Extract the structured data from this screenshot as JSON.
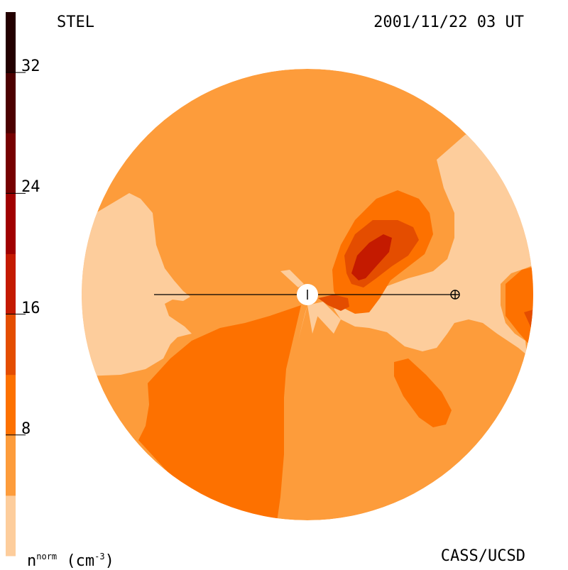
{
  "header": {
    "left_label": "STEL",
    "timestamp": "2001/11/22 03 UT"
  },
  "footer": {
    "credit": "CASS/UCSD",
    "unit_base": "n",
    "unit_sup": "norm",
    "unit_open": "(cm",
    "unit_exp": "-3",
    "unit_close": ")"
  },
  "chart_data": {
    "type": "heatmap",
    "title": "",
    "colorbar": {
      "min": 0,
      "max": 36,
      "step": 4,
      "tick_values": [
        8,
        16,
        24,
        32
      ],
      "tick_labels": [
        "8",
        "16",
        "24",
        "32"
      ],
      "levels": [
        {
          "from": 0,
          "to": 4,
          "color": "#fdcd9c"
        },
        {
          "from": 4,
          "to": 8,
          "color": "#fd9c3b"
        },
        {
          "from": 8,
          "to": 12,
          "color": "#fd7100"
        },
        {
          "from": 12,
          "to": 16,
          "color": "#e44d00"
        },
        {
          "from": 16,
          "to": 20,
          "color": "#c41a00"
        },
        {
          "from": 20,
          "to": 24,
          "color": "#a00000"
        },
        {
          "from": 24,
          "to": 28,
          "color": "#760000"
        },
        {
          "from": 28,
          "to": 32,
          "color": "#4c0000"
        },
        {
          "from": 32,
          "to": 36,
          "color": "#230000"
        }
      ]
    },
    "map": {
      "view": "ecliptic plane viewed from above, Sun at center",
      "background_level_color": "#fd9c3b",
      "markers": [
        {
          "name": "sun",
          "symbol": "filled circle"
        },
        {
          "name": "earth",
          "symbol": "circled plus"
        }
      ]
    }
  }
}
